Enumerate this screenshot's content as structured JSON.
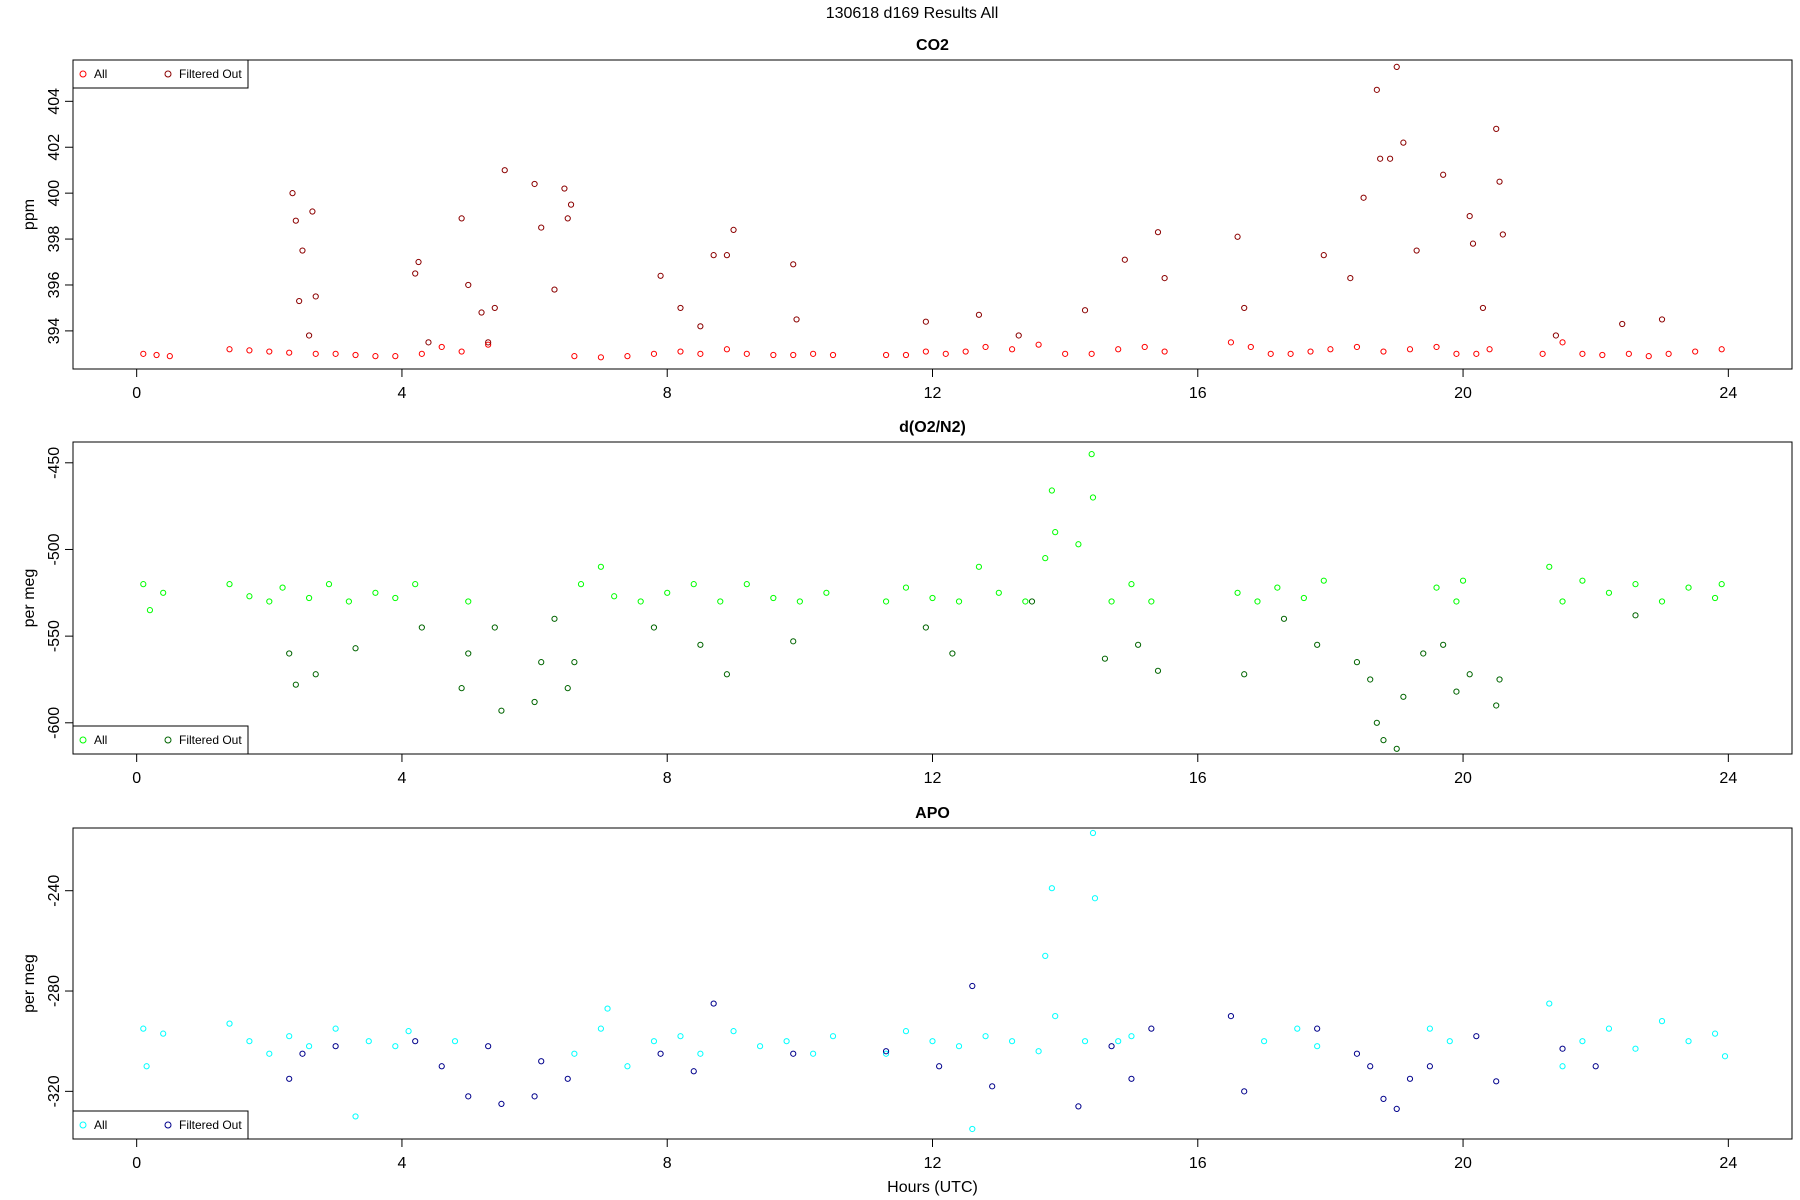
{
  "title": "130618   d169   Results All",
  "chart_data": [
    {
      "type": "scatter",
      "title": "CO2",
      "ylabel": "ppm",
      "legend": "top-left",
      "xlim": [
        -0.96,
        24.96
      ],
      "xticks": [
        0,
        4,
        8,
        12,
        16,
        20,
        24
      ],
      "ylim": [
        392.34,
        405.8
      ],
      "yticks": [
        394,
        396,
        398,
        400,
        402,
        404
      ],
      "series": [
        {
          "name": "All",
          "color": "#ff0000",
          "x": [
            0.1,
            0.3,
            0.5,
            1.4,
            1.7,
            2.0,
            2.3,
            2.7,
            3.0,
            3.3,
            3.6,
            3.9,
            4.3,
            4.6,
            4.9,
            5.3,
            6.6,
            7.0,
            7.4,
            7.8,
            8.2,
            8.5,
            8.9,
            9.2,
            9.6,
            9.9,
            10.2,
            10.5,
            11.3,
            11.6,
            11.9,
            12.2,
            12.5,
            12.8,
            13.2,
            13.6,
            14.0,
            14.4,
            14.8,
            15.2,
            15.5,
            16.5,
            16.8,
            17.1,
            17.4,
            17.7,
            18.0,
            18.4,
            18.8,
            19.2,
            19.6,
            19.9,
            20.2,
            20.4,
            21.2,
            21.5,
            21.8,
            22.1,
            22.5,
            22.8,
            23.1,
            23.5,
            23.9
          ],
          "values": [
            393.0,
            392.95,
            392.9,
            393.2,
            393.15,
            393.1,
            393.05,
            393.0,
            393.0,
            392.95,
            392.9,
            392.9,
            393.0,
            393.3,
            393.1,
            393.4,
            392.9,
            392.85,
            392.9,
            393.0,
            393.1,
            393.0,
            393.2,
            393.0,
            392.95,
            392.95,
            393.0,
            392.95,
            392.95,
            392.95,
            393.1,
            393.0,
            393.1,
            393.3,
            393.2,
            393.4,
            393.0,
            393.0,
            393.2,
            393.3,
            393.1,
            393.5,
            393.3,
            393.0,
            393.0,
            393.1,
            393.2,
            393.3,
            393.1,
            393.2,
            393.3,
            393.0,
            393.0,
            393.2,
            393.0,
            393.5,
            393.0,
            392.95,
            393.0,
            392.9,
            393.0,
            393.1,
            393.2
          ]
        },
        {
          "name": "Filtered Out",
          "color": "#8b0000",
          "x": [
            2.35,
            2.4,
            2.45,
            2.5,
            2.6,
            2.65,
            2.7,
            4.2,
            4.25,
            4.4,
            4.9,
            5.0,
            5.2,
            5.3,
            5.55,
            5.4,
            6.0,
            6.1,
            6.3,
            6.45,
            6.5,
            6.55,
            7.9,
            8.2,
            8.5,
            8.7,
            8.9,
            9.0,
            9.9,
            9.95,
            11.9,
            12.7,
            13.3,
            14.3,
            14.9,
            15.5,
            15.4,
            16.6,
            16.7,
            17.9,
            18.3,
            18.5,
            18.7,
            18.75,
            18.9,
            19.0,
            19.1,
            19.3,
            19.7,
            20.1,
            20.15,
            20.3,
            20.5,
            20.55,
            20.6,
            21.4,
            22.4,
            23.0
          ],
          "values": [
            400.0,
            398.8,
            395.3,
            397.5,
            393.8,
            399.2,
            395.5,
            396.5,
            397.0,
            393.5,
            398.9,
            396.0,
            394.8,
            393.5,
            401.0,
            395.0,
            400.4,
            398.5,
            395.8,
            400.2,
            398.9,
            399.5,
            396.4,
            395.0,
            394.2,
            397.3,
            397.3,
            398.4,
            396.9,
            394.5,
            394.4,
            394.7,
            393.8,
            394.9,
            397.1,
            396.3,
            398.3,
            398.1,
            395.0,
            397.3,
            396.3,
            399.8,
            404.5,
            401.5,
            401.5,
            405.5,
            402.2,
            397.5,
            400.8,
            399.0,
            397.8,
            395.0,
            402.8,
            400.5,
            398.2,
            393.8,
            394.3,
            394.5
          ]
        }
      ]
    },
    {
      "type": "scatter",
      "title": "d(O2/N2)",
      "ylabel": "per meg",
      "legend": "bottom-left",
      "xlim": [
        -0.96,
        24.96
      ],
      "xticks": [
        0,
        4,
        8,
        12,
        16,
        20,
        24
      ],
      "ylim": [
        -618,
        -438
      ],
      "yticks": [
        -450,
        -500,
        -550,
        -600
      ],
      "series": [
        {
          "name": "All",
          "color": "#00ff00",
          "x": [
            0.1,
            0.2,
            0.4,
            1.4,
            1.7,
            2.0,
            2.2,
            2.6,
            2.9,
            3.2,
            3.6,
            3.9,
            4.2,
            5.0,
            6.7,
            7.0,
            7.2,
            7.6,
            8.0,
            8.4,
            8.8,
            9.2,
            9.6,
            10.0,
            10.4,
            11.3,
            11.6,
            12.0,
            12.4,
            12.7,
            13.0,
            13.4,
            13.7,
            13.8,
            13.85,
            14.2,
            14.4,
            14.42,
            14.7,
            15.0,
            15.3,
            16.6,
            16.9,
            17.2,
            17.6,
            17.9,
            19.6,
            19.9,
            20.0,
            21.3,
            21.5,
            21.8,
            22.2,
            22.6,
            23.0,
            23.4,
            23.8,
            23.9
          ],
          "values": [
            -520,
            -535,
            -525,
            -520,
            -527,
            -530,
            -522,
            -528,
            -520,
            -530,
            -525,
            -528,
            -520,
            -530,
            -520,
            -510,
            -527,
            -530,
            -525,
            -520,
            -530,
            -520,
            -528,
            -530,
            -525,
            -530,
            -522,
            -528,
            -530,
            -510,
            -525,
            -530,
            -505,
            -466,
            -490,
            -497,
            -445,
            -470,
            -530,
            -520,
            -530,
            -525,
            -530,
            -522,
            -528,
            -518,
            -522,
            -530,
            -518,
            -510,
            -530,
            -518,
            -525,
            -520,
            -530,
            -522,
            -528,
            -520
          ]
        },
        {
          "name": "Filtered Out",
          "color": "#006400",
          "x": [
            2.3,
            2.4,
            2.7,
            3.3,
            4.3,
            4.9,
            5.0,
            5.4,
            5.5,
            6.0,
            6.1,
            6.3,
            6.5,
            6.6,
            7.8,
            8.5,
            8.9,
            9.9,
            11.9,
            12.3,
            13.5,
            14.6,
            15.1,
            15.4,
            16.7,
            17.3,
            17.8,
            18.4,
            18.6,
            18.7,
            18.8,
            19.0,
            19.1,
            19.4,
            19.7,
            19.9,
            20.1,
            20.5,
            20.55,
            22.6
          ],
          "values": [
            -560,
            -578,
            -572,
            -557,
            -545,
            -580,
            -560,
            -545,
            -593,
            -588,
            -565,
            -540,
            -580,
            -565,
            -545,
            -555,
            -572,
            -553,
            -545,
            -560,
            -530,
            -563,
            -555,
            -570,
            -572,
            -540,
            -555,
            -565,
            -575,
            -600,
            -610,
            -615,
            -585,
            -560,
            -555,
            -582,
            -572,
            -590,
            -575,
            -538
          ]
        }
      ]
    },
    {
      "type": "scatter",
      "title": "APO",
      "ylabel": "per meg",
      "xlabel": "Hours (UTC)",
      "legend": "bottom-left",
      "xlim": [
        -0.96,
        24.96
      ],
      "xticks": [
        0,
        4,
        8,
        12,
        16,
        20,
        24
      ],
      "ylim": [
        -339,
        -215
      ],
      "yticks": [
        -240,
        -280,
        -320
      ],
      "series": [
        {
          "name": "All",
          "color": "#00ffff",
          "x": [
            0.1,
            0.15,
            0.4,
            1.4,
            1.7,
            2.0,
            2.3,
            2.6,
            3.0,
            3.3,
            3.5,
            3.9,
            4.1,
            4.8,
            6.6,
            7.0,
            7.1,
            7.4,
            7.8,
            8.2,
            8.5,
            9.0,
            9.4,
            9.8,
            10.2,
            10.5,
            11.3,
            11.6,
            12.0,
            12.4,
            12.6,
            12.8,
            13.2,
            13.6,
            13.7,
            13.8,
            13.85,
            14.3,
            14.42,
            14.45,
            14.8,
            15.0,
            17.0,
            17.5,
            17.8,
            19.5,
            19.8,
            21.3,
            21.5,
            21.8,
            22.2,
            22.6,
            23.0,
            23.4,
            23.8,
            23.95
          ],
          "values": [
            -295,
            -310,
            -297,
            -293,
            -300,
            -305,
            -298,
            -302,
            -295,
            -330,
            -300,
            -302,
            -296,
            -300,
            -305,
            -295,
            -287,
            -310,
            -300,
            -298,
            -305,
            -296,
            -302,
            -300,
            -305,
            -298,
            -305,
            -296,
            -300,
            -302,
            -335,
            -298,
            -300,
            -304,
            -266,
            -239,
            -290,
            -300,
            -217,
            -243,
            -300,
            -298,
            -300,
            -295,
            -302,
            -295,
            -300,
            -285,
            -310,
            -300,
            -295,
            -303,
            -292,
            -300,
            -297,
            -306
          ]
        },
        {
          "name": "Filtered Out",
          "color": "#00008b",
          "x": [
            2.3,
            2.5,
            3.0,
            4.2,
            4.6,
            5.0,
            5.3,
            5.5,
            6.0,
            6.1,
            6.5,
            7.9,
            8.7,
            8.4,
            9.9,
            11.3,
            12.1,
            12.6,
            12.9,
            14.2,
            14.7,
            15.0,
            15.3,
            16.5,
            16.7,
            17.8,
            18.4,
            18.6,
            18.8,
            19.0,
            19.2,
            19.5,
            20.2,
            20.5,
            21.5,
            22.0
          ],
          "values": [
            -315,
            -305,
            -302,
            -300,
            -310,
            -322,
            -302,
            -325,
            -322,
            -308,
            -315,
            -305,
            -285,
            -312,
            -305,
            -304,
            -310,
            -278,
            -318,
            -326,
            -302,
            -315,
            -295,
            -290,
            -320,
            -295,
            -305,
            -310,
            -323,
            -327,
            -315,
            -310,
            -298,
            -316,
            -303,
            -310
          ]
        }
      ]
    }
  ]
}
